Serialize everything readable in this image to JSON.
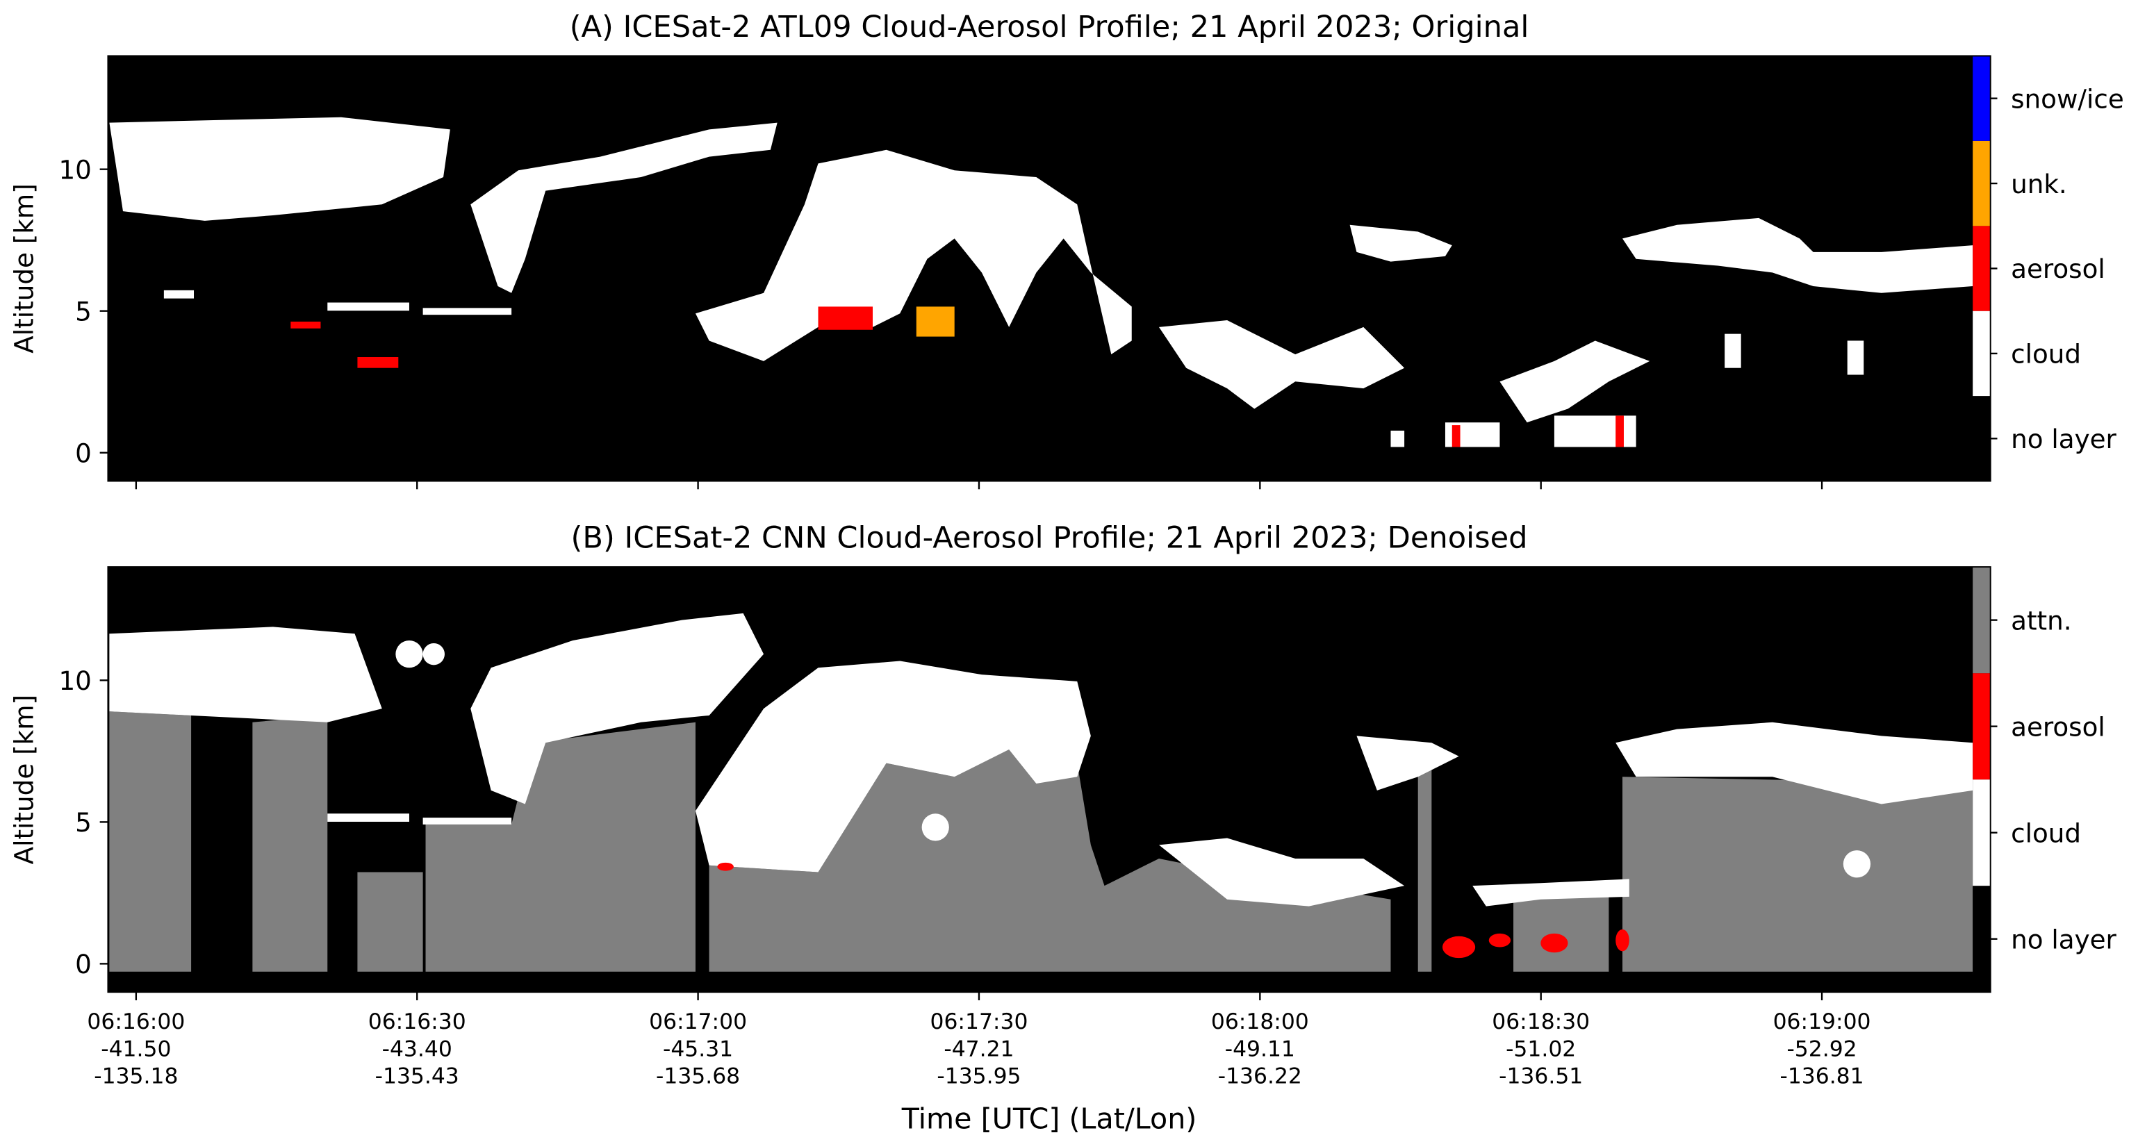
{
  "chart_data": [
    {
      "type": "curtain",
      "title": "(A) ICESat-2 ATL09 Cloud-Aerosol Profile; 21 April 2023; Original",
      "ylabel": "Altitude [km]",
      "ylim": [
        -1,
        14
      ],
      "yticks": [
        0,
        5,
        10
      ],
      "xlim": [
        "06:15:57",
        "06:19:18"
      ],
      "colorbar": [
        {
          "label": "no layer",
          "color": "#000000"
        },
        {
          "label": "cloud",
          "color": "#ffffff"
        },
        {
          "label": "aerosol",
          "color": "#ff0000"
        },
        {
          "label": "unk.",
          "color": "#ffa500"
        },
        {
          "label": "snow/ice",
          "color": "#0000ff"
        }
      ]
    },
    {
      "type": "curtain",
      "title": "(B) ICESat-2 CNN Cloud-Aerosol Profile; 21 April 2023; Denoised",
      "ylabel": "Altitude [km]",
      "xlabel": "Time [UTC] (Lat/Lon)",
      "ylim": [
        -1,
        14
      ],
      "yticks": [
        0,
        5,
        10
      ],
      "xlim": [
        "06:15:57",
        "06:19:18"
      ],
      "xticks": [
        {
          "time": "06:16:00",
          "lat": "-41.50",
          "lon": "-135.18"
        },
        {
          "time": "06:16:30",
          "lat": "-43.40",
          "lon": "-135.43"
        },
        {
          "time": "06:17:00",
          "lat": "-45.31",
          "lon": "-135.68"
        },
        {
          "time": "06:17:30",
          "lat": "-47.21",
          "lon": "-135.95"
        },
        {
          "time": "06:18:00",
          "lat": "-49.11",
          "lon": "-136.22"
        },
        {
          "time": "06:18:30",
          "lat": "-51.02",
          "lon": "-136.51"
        },
        {
          "time": "06:19:00",
          "lat": "-52.92",
          "lon": "-136.81"
        }
      ],
      "colorbar": [
        {
          "label": "no layer",
          "color": "#000000"
        },
        {
          "label": "cloud",
          "color": "#ffffff"
        },
        {
          "label": "aerosol",
          "color": "#ff0000"
        },
        {
          "label": "attn.",
          "color": "#808080"
        }
      ]
    }
  ]
}
